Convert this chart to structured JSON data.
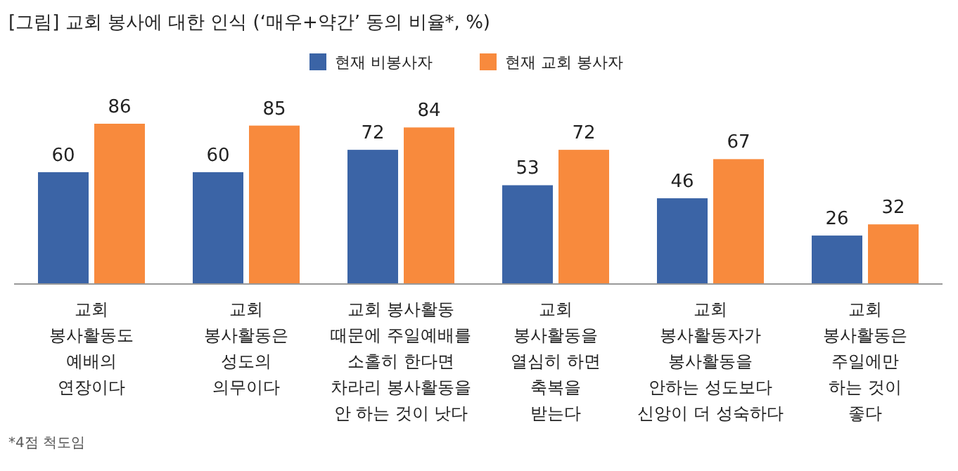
{
  "chart_data": {
    "type": "bar",
    "title": "[그림] 교회 봉사에 대한 인식 (‘매우+약간’ 동의 비율*, %)",
    "categories": [
      "교회\n봉사활동도\n예배의\n연장이다",
      "교회\n봉사활동은\n성도의\n의무이다",
      "교회 봉사활동\n때문에 주일예배를\n소홀히 한다면\n차라리 봉사활동을\n안 하는 것이 낫다",
      "교회\n봉사활동을\n열심히 하면\n축복을\n받는다",
      "교회\n봉사활동자가\n봉사활동을\n안하는 성도보다\n신앙이 더 성숙하다",
      "교회\n봉사활동은\n주일에만\n하는 것이\n좋다"
    ],
    "series": [
      {
        "name": "현재 비봉사자",
        "color": "#3b64a6",
        "values": [
          60,
          60,
          72,
          53,
          46,
          26
        ]
      },
      {
        "name": "현재 교회 봉사자",
        "color": "#f88a3d",
        "values": [
          86,
          85,
          84,
          72,
          67,
          32
        ]
      }
    ],
    "data_labels": true,
    "legend": "top",
    "annotations": [
      "*4점 척도임"
    ]
  }
}
